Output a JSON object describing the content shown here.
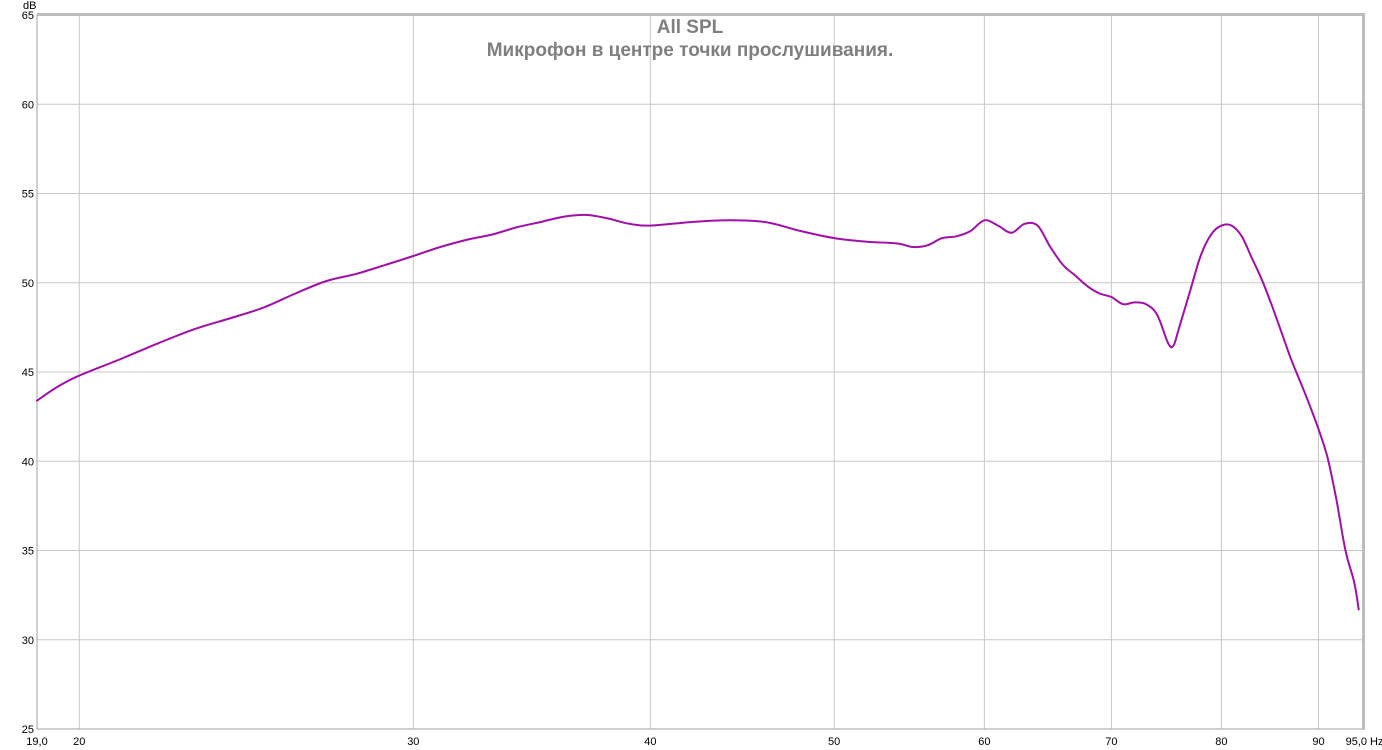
{
  "chart_data": {
    "type": "line",
    "title": "All SPL",
    "subtitle": "Микрофон в центре точки прослушивания.",
    "ylabel": "dB",
    "xunit": "Hz",
    "xscale": "log",
    "xlim": [
      19.0,
      95.0
    ],
    "ylim": [
      25,
      65
    ],
    "x_ticks": [
      {
        "value": 19.0,
        "label": "19,0"
      },
      {
        "value": 20,
        "label": "20"
      },
      {
        "value": 30,
        "label": "30"
      },
      {
        "value": 40,
        "label": "40"
      },
      {
        "value": 50,
        "label": "50"
      },
      {
        "value": 60,
        "label": "60"
      },
      {
        "value": 70,
        "label": "70"
      },
      {
        "value": 80,
        "label": "80"
      },
      {
        "value": 90,
        "label": "90"
      },
      {
        "value": 95.0,
        "label": "95,0"
      }
    ],
    "y_ticks": [
      25,
      30,
      35,
      40,
      45,
      50,
      55,
      60,
      65
    ],
    "grid": true,
    "colors": {
      "line": "#a010a8",
      "grid": "#c8c8c8",
      "frame": "#a0a0a0",
      "title": "#7f7f7f"
    },
    "series": [
      {
        "color": "#a010a8",
        "points": [
          [
            19.0,
            43.4
          ],
          [
            19.5,
            44.2
          ],
          [
            20.0,
            44.8
          ],
          [
            21.0,
            45.7
          ],
          [
            22.0,
            46.6
          ],
          [
            23.0,
            47.4
          ],
          [
            24.0,
            48.0
          ],
          [
            25.0,
            48.6
          ],
          [
            26.0,
            49.4
          ],
          [
            27.0,
            50.1
          ],
          [
            28.0,
            50.5
          ],
          [
            29.0,
            51.0
          ],
          [
            30.0,
            51.5
          ],
          [
            31.0,
            52.0
          ],
          [
            32.0,
            52.4
          ],
          [
            33.0,
            52.7
          ],
          [
            34.0,
            53.1
          ],
          [
            35.0,
            53.4
          ],
          [
            36.0,
            53.7
          ],
          [
            37.0,
            53.8
          ],
          [
            38.0,
            53.6
          ],
          [
            39.0,
            53.3
          ],
          [
            40.0,
            53.2
          ],
          [
            42.0,
            53.4
          ],
          [
            44.0,
            53.5
          ],
          [
            46.0,
            53.4
          ],
          [
            48.0,
            52.9
          ],
          [
            50.0,
            52.5
          ],
          [
            52.0,
            52.3
          ],
          [
            54.0,
            52.2
          ],
          [
            55.0,
            52.0
          ],
          [
            56.0,
            52.1
          ],
          [
            57.0,
            52.5
          ],
          [
            58.0,
            52.6
          ],
          [
            59.0,
            52.9
          ],
          [
            60.0,
            53.5
          ],
          [
            61.0,
            53.2
          ],
          [
            62.0,
            52.8
          ],
          [
            63.0,
            53.3
          ],
          [
            64.0,
            53.2
          ],
          [
            65.0,
            52.0
          ],
          [
            66.0,
            51.0
          ],
          [
            67.0,
            50.4
          ],
          [
            68.0,
            49.8
          ],
          [
            69.0,
            49.4
          ],
          [
            70.0,
            49.2
          ],
          [
            71.0,
            48.8
          ],
          [
            72.0,
            48.9
          ],
          [
            73.0,
            48.8
          ],
          [
            74.0,
            48.2
          ],
          [
            75.0,
            46.6
          ],
          [
            75.5,
            46.5
          ],
          [
            76.0,
            47.5
          ],
          [
            77.0,
            49.5
          ],
          [
            78.0,
            51.5
          ],
          [
            79.0,
            52.7
          ],
          [
            80.0,
            53.2
          ],
          [
            81.0,
            53.2
          ],
          [
            82.0,
            52.6
          ],
          [
            83.0,
            51.4
          ],
          [
            84.0,
            50.2
          ],
          [
            85.0,
            48.8
          ],
          [
            86.0,
            47.3
          ],
          [
            87.0,
            45.8
          ],
          [
            88.0,
            44.5
          ],
          [
            89.0,
            43.2
          ],
          [
            90.0,
            41.8
          ],
          [
            91.0,
            40.2
          ],
          [
            92.0,
            37.8
          ],
          [
            93.0,
            35.0
          ],
          [
            94.0,
            33.2
          ],
          [
            94.5,
            31.7
          ]
        ]
      }
    ]
  }
}
